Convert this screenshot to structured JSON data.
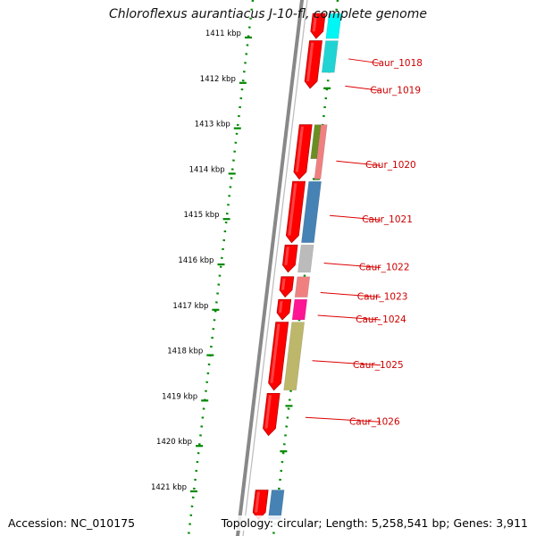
{
  "title": "Chloroflexus aurantiacus J-10-fl, complete genome",
  "footer": {
    "accession": "Accession: NC_010175",
    "summary": "Topology: circular; Length: 5,258,541 bp; Genes: 3,911"
  },
  "ruler": {
    "unit": "kbp",
    "ticks": [
      {
        "label": "1411 kbp",
        "kbp": 1411
      },
      {
        "label": "1412 kbp",
        "kbp": 1412
      },
      {
        "label": "1413 kbp",
        "kbp": 1413
      },
      {
        "label": "1414 kbp",
        "kbp": 1414
      },
      {
        "label": "1415 kbp",
        "kbp": 1415
      },
      {
        "label": "1416 kbp",
        "kbp": 1416
      },
      {
        "label": "1417 kbp",
        "kbp": 1417
      },
      {
        "label": "1418 kbp",
        "kbp": 1418
      },
      {
        "label": "1419 kbp",
        "kbp": 1419
      },
      {
        "label": "1420 kbp",
        "kbp": 1420
      },
      {
        "label": "1421 kbp",
        "kbp": 1421
      }
    ]
  },
  "cds_arrows": [
    {
      "start_kbp": 1410.55,
      "end_kbp": 1411.1
    },
    {
      "start_kbp": 1411.15,
      "end_kbp": 1412.2
    },
    {
      "start_kbp": 1413.0,
      "end_kbp": 1414.2
    },
    {
      "start_kbp": 1414.25,
      "end_kbp": 1415.6
    },
    {
      "start_kbp": 1415.65,
      "end_kbp": 1416.25
    },
    {
      "start_kbp": 1416.35,
      "end_kbp": 1416.8
    },
    {
      "start_kbp": 1416.85,
      "end_kbp": 1417.3
    },
    {
      "start_kbp": 1417.35,
      "end_kbp": 1418.85
    },
    {
      "start_kbp": 1418.92,
      "end_kbp": 1419.85
    },
    {
      "start_kbp": 1421.05,
      "end_kbp": 1421.7
    }
  ],
  "protein_tracks": [
    {
      "start_kbp": 1410.55,
      "end_kbp": 1411.1,
      "color": "#00f5f5"
    },
    {
      "start_kbp": 1411.15,
      "end_kbp": 1411.85,
      "color": "#22d3d3"
    },
    {
      "start_kbp": 1413.0,
      "end_kbp": 1413.75,
      "color": "#6b8e23",
      "lane": 0
    },
    {
      "start_kbp": 1413.0,
      "end_kbp": 1414.2,
      "color": "#f08080",
      "lane": 1
    },
    {
      "start_kbp": 1414.25,
      "end_kbp": 1415.6,
      "color": "#4682b4"
    },
    {
      "start_kbp": 1415.65,
      "end_kbp": 1416.25,
      "color": "#bbbbbb"
    },
    {
      "start_kbp": 1416.35,
      "end_kbp": 1416.8,
      "color": "#f08080"
    },
    {
      "start_kbp": 1416.85,
      "end_kbp": 1417.3,
      "color": "#ff1493"
    },
    {
      "start_kbp": 1417.35,
      "end_kbp": 1418.85,
      "color": "#bdb76b"
    },
    {
      "start_kbp": 1421.05,
      "end_kbp": 1421.7,
      "color": "#4682b4"
    }
  ],
  "gene_labels": [
    {
      "label": "Caur_1018",
      "kbp": 1411.55
    },
    {
      "label": "Caur_1019",
      "kbp": 1412.15
    },
    {
      "label": "Caur_1020",
      "kbp": 1413.8
    },
    {
      "label": "Caur_1021",
      "kbp": 1415.0
    },
    {
      "label": "Caur_1022",
      "kbp": 1416.05
    },
    {
      "label": "Caur_1023",
      "kbp": 1416.7
    },
    {
      "label": "Caur_1024",
      "kbp": 1417.2
    },
    {
      "label": "Caur_1025",
      "kbp": 1418.2
    },
    {
      "label": "Caur_1026",
      "kbp": 1419.45
    }
  ],
  "colors": {
    "backbone": "#888888",
    "cds": "#ff0000",
    "label_text": "#cc0000",
    "label_line": "#dd0000",
    "dots": "#008800",
    "tick_text": "#000000"
  }
}
